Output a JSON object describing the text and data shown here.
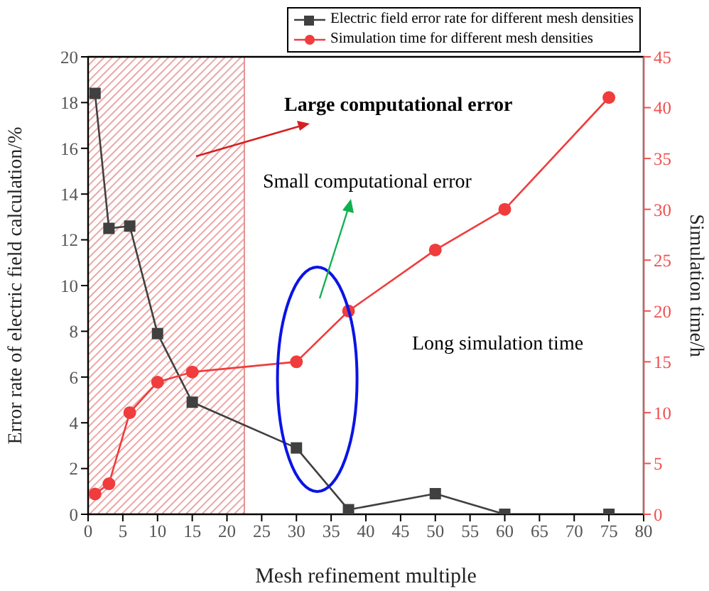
{
  "chart_data": {
    "type": "line",
    "xlabel": "Mesh refinement multiple",
    "ylabel": "Error rate of electric field calculation/%",
    "y2label": "Simulation time/h",
    "series": [
      {
        "name": "Electric field error rate for different mesh densities",
        "color": "#404040",
        "marker": "square",
        "x": [
          1,
          3,
          6,
          10,
          15,
          30,
          37.5,
          50,
          60,
          75
        ],
        "values": [
          18.4,
          12.5,
          12.6,
          7.9,
          4.9,
          2.9,
          0.2,
          0.9,
          0,
          0
        ]
      },
      {
        "name": "Simulation time for different mesh densities",
        "color": "#f03c3c",
        "marker": "circle",
        "axis": "y2",
        "x": [
          1,
          3,
          6,
          10,
          15,
          30,
          37.5,
          50,
          60,
          75
        ],
        "values": [
          2,
          3,
          10,
          13,
          14,
          15,
          20,
          26,
          30,
          41
        ]
      }
    ],
    "xlim": [
      0,
      80
    ],
    "xticks": [
      0,
      5,
      10,
      15,
      20,
      25,
      30,
      35,
      40,
      45,
      50,
      55,
      60,
      65,
      70,
      75,
      80
    ],
    "ylim": [
      0,
      20
    ],
    "yticks": [
      0,
      2,
      4,
      6,
      8,
      10,
      12,
      14,
      16,
      18,
      20
    ],
    "y2lim": [
      0,
      45
    ],
    "y2ticks": [
      0,
      5,
      10,
      15,
      20,
      25,
      30,
      35,
      40,
      45
    ],
    "bands": [
      {
        "axis": "x",
        "from": 0,
        "to": 22.5,
        "color": "#e89090"
      }
    ],
    "annotations": [
      "Large computational error",
      "Small computational error",
      "Long simulation time"
    ],
    "legend": "top right",
    "grid": false
  }
}
